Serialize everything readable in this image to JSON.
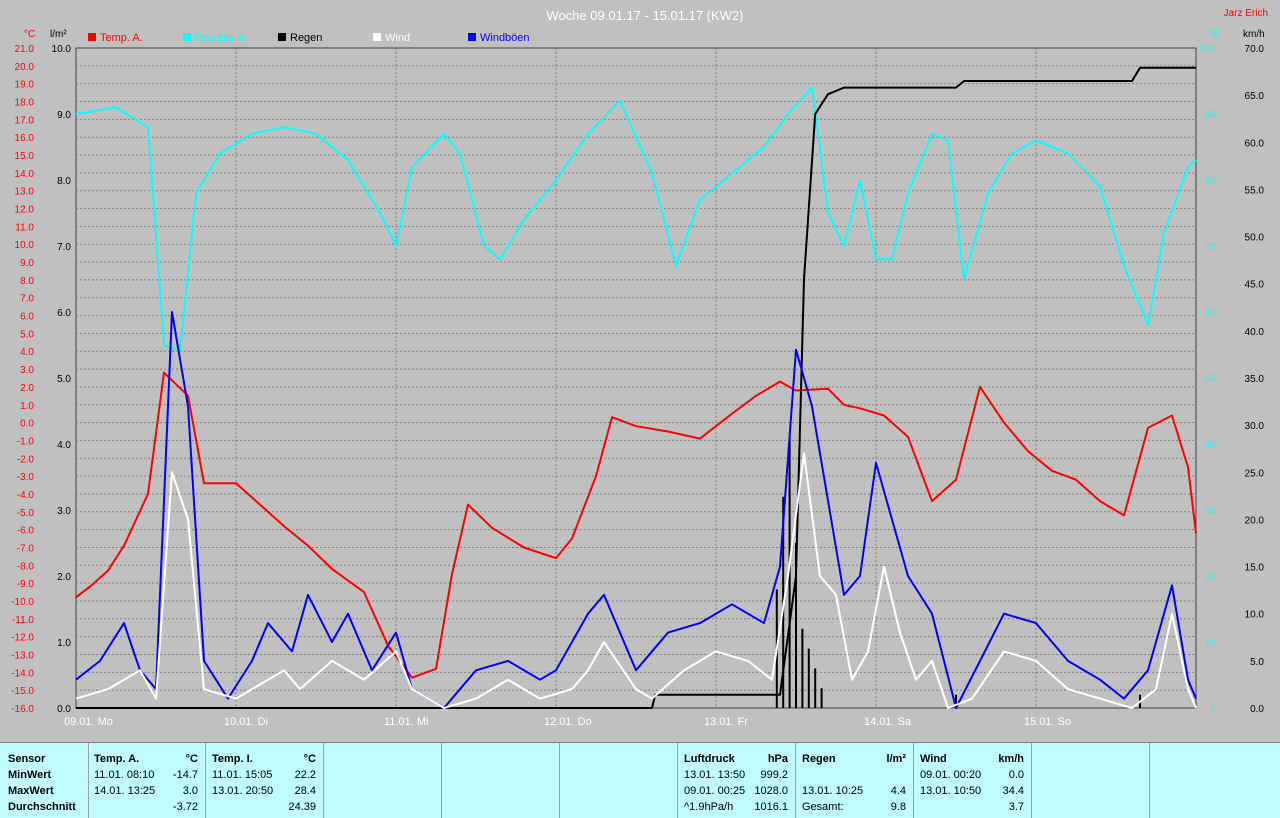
{
  "chart_data": {
    "type": "line",
    "title": "Woche 09.01.17 - 15.01.17 (KW2)",
    "credit": "Jarz Erich",
    "left_axis_unit": "°C",
    "rain_axis_unit": "l/m²",
    "humidity_axis_unit": "%",
    "wind_axis_unit": "km/h",
    "temp_ylim": [
      -16,
      21
    ],
    "rain_ylim": [
      0,
      10
    ],
    "humidity_ylim": [
      0,
      100
    ],
    "wind_ylim": [
      0,
      70
    ],
    "temp_ticks": [
      "21.0",
      "20.0",
      "19.0",
      "18.0",
      "17.0",
      "16.0",
      "15.0",
      "14.0",
      "13.0",
      "12.0",
      "11.0",
      "10.0",
      "9.0",
      "8.0",
      "7.0",
      "6.0",
      "5.0",
      "4.0",
      "3.0",
      "2.0",
      "1.0",
      "0.0",
      "-1.0",
      "-2.0",
      "-3.0",
      "-4.0",
      "-5.0",
      "-6.0",
      "-7.0",
      "-8.0",
      "-9.0",
      "-10.0",
      "-11.0",
      "-12.0",
      "-13.0",
      "-14.0",
      "-15.0",
      "-16.0"
    ],
    "rain_ticks": [
      "10.0",
      "9.0",
      "8.0",
      "7.0",
      "6.0",
      "5.0",
      "4.0",
      "3.0",
      "2.0",
      "1.0",
      "0.0"
    ],
    "humidity_ticks": [
      "100",
      "90",
      "80",
      "70",
      "60",
      "50",
      "40",
      "30",
      "20",
      "10",
      "0"
    ],
    "wind_ticks": [
      "70.0",
      "65.0",
      "60.0",
      "55.0",
      "50.0",
      "45.0",
      "40.0",
      "35.0",
      "30.0",
      "25.0",
      "20.0",
      "15.0",
      "10.0",
      "5.0",
      "0.0"
    ],
    "x_labels": [
      "09.01. Mo",
      "10.01. Di",
      "11.01. Mi",
      "12.01. Do",
      "13.01. Fr",
      "14.01. Sa",
      "15.01. So"
    ],
    "x_range_days": [
      0,
      7
    ],
    "grid": true,
    "legend_position": "top",
    "colors": {
      "temp": "#ff0000",
      "humidity": "#00ffff",
      "rain": "#000000",
      "wind": "#ffffff",
      "gusts": "#0000ff",
      "background": "#c0c0c0",
      "grid": "#808080"
    },
    "series": [
      {
        "name": "Temp. A.",
        "axis": "temp",
        "color": "#ff0000",
        "points": [
          [
            0,
            -9.8
          ],
          [
            0.1,
            -9.1
          ],
          [
            0.2,
            -8.3
          ],
          [
            0.3,
            -6.9
          ],
          [
            0.45,
            -4.0
          ],
          [
            0.55,
            2.8
          ],
          [
            0.7,
            1.5
          ],
          [
            0.8,
            -3.4
          ],
          [
            1.0,
            -3.4
          ],
          [
            1.15,
            -4.6
          ],
          [
            1.3,
            -5.8
          ],
          [
            1.45,
            -6.9
          ],
          [
            1.6,
            -8.2
          ],
          [
            1.8,
            -9.5
          ],
          [
            1.95,
            -12.5
          ],
          [
            2.1,
            -14.3
          ],
          [
            2.25,
            -13.8
          ],
          [
            2.35,
            -8.5
          ],
          [
            2.45,
            -4.6
          ],
          [
            2.6,
            -5.9
          ],
          [
            2.8,
            -7.0
          ],
          [
            3.0,
            -7.6
          ],
          [
            3.1,
            -6.5
          ],
          [
            3.25,
            -3.0
          ],
          [
            3.35,
            0.3
          ],
          [
            3.5,
            -0.2
          ],
          [
            3.7,
            -0.5
          ],
          [
            3.9,
            -0.9
          ],
          [
            4.1,
            0.5
          ],
          [
            4.25,
            1.5
          ],
          [
            4.4,
            2.3
          ],
          [
            4.5,
            1.8
          ],
          [
            4.7,
            1.9
          ],
          [
            4.8,
            1.0
          ],
          [
            4.9,
            0.8
          ],
          [
            5.05,
            0.4
          ],
          [
            5.2,
            -0.8
          ],
          [
            5.35,
            -4.4
          ],
          [
            5.5,
            -3.2
          ],
          [
            5.65,
            2.0
          ],
          [
            5.8,
            0.0
          ],
          [
            5.95,
            -1.6
          ],
          [
            6.1,
            -2.7
          ],
          [
            6.25,
            -3.2
          ],
          [
            6.4,
            -4.4
          ],
          [
            6.55,
            -5.2
          ],
          [
            6.7,
            -0.3
          ],
          [
            6.85,
            0.4
          ],
          [
            6.95,
            -2.5
          ],
          [
            7.0,
            -6.2
          ]
        ]
      },
      {
        "name": "Feuchte A.",
        "axis": "humidity",
        "color": "#00ffff",
        "points": [
          [
            0,
            90
          ],
          [
            0.25,
            91
          ],
          [
            0.45,
            88
          ],
          [
            0.55,
            55
          ],
          [
            0.65,
            54
          ],
          [
            0.75,
            78
          ],
          [
            0.9,
            84
          ],
          [
            1.1,
            87
          ],
          [
            1.3,
            88
          ],
          [
            1.5,
            87
          ],
          [
            1.7,
            83
          ],
          [
            1.9,
            75
          ],
          [
            2.0,
            70
          ],
          [
            2.1,
            82
          ],
          [
            2.3,
            87
          ],
          [
            2.4,
            84
          ],
          [
            2.55,
            70
          ],
          [
            2.65,
            68
          ],
          [
            2.8,
            74
          ],
          [
            3.0,
            80
          ],
          [
            3.2,
            87
          ],
          [
            3.4,
            92
          ],
          [
            3.6,
            81
          ],
          [
            3.75,
            67
          ],
          [
            3.9,
            77
          ],
          [
            4.1,
            81
          ],
          [
            4.3,
            85
          ],
          [
            4.45,
            90
          ],
          [
            4.6,
            94
          ],
          [
            4.7,
            75
          ],
          [
            4.8,
            70
          ],
          [
            4.9,
            80
          ],
          [
            5.0,
            68
          ],
          [
            5.1,
            68
          ],
          [
            5.2,
            78
          ],
          [
            5.35,
            87
          ],
          [
            5.45,
            86
          ],
          [
            5.55,
            65
          ],
          [
            5.7,
            78
          ],
          [
            5.85,
            84
          ],
          [
            6.0,
            86
          ],
          [
            6.2,
            84
          ],
          [
            6.4,
            79
          ],
          [
            6.55,
            67
          ],
          [
            6.7,
            58
          ],
          [
            6.8,
            72
          ],
          [
            6.95,
            82
          ],
          [
            7.0,
            83
          ]
        ]
      },
      {
        "name": "Regen",
        "axis": "rain",
        "color": "#000000",
        "points": [
          [
            0,
            0
          ],
          [
            3.6,
            0
          ],
          [
            3.62,
            0.2
          ],
          [
            4.4,
            0.2
          ],
          [
            4.5,
            2.0
          ],
          [
            4.55,
            6.5
          ],
          [
            4.62,
            9.0
          ],
          [
            4.7,
            9.3
          ],
          [
            4.8,
            9.4
          ],
          [
            5.5,
            9.4
          ],
          [
            5.55,
            9.5
          ],
          [
            6.6,
            9.5
          ],
          [
            6.65,
            9.7
          ],
          [
            7.0,
            9.7
          ]
        ]
      },
      {
        "name": "Wind",
        "axis": "wind",
        "color": "#ffffff",
        "points": [
          [
            0,
            1
          ],
          [
            0.2,
            2
          ],
          [
            0.4,
            4
          ],
          [
            0.5,
            1
          ],
          [
            0.6,
            25
          ],
          [
            0.7,
            20
          ],
          [
            0.8,
            2
          ],
          [
            1.0,
            1
          ],
          [
            1.1,
            2
          ],
          [
            1.3,
            4
          ],
          [
            1.4,
            2
          ],
          [
            1.6,
            5
          ],
          [
            1.8,
            3
          ],
          [
            2.0,
            6
          ],
          [
            2.1,
            2
          ],
          [
            2.3,
            0
          ],
          [
            2.5,
            1
          ],
          [
            2.7,
            3
          ],
          [
            2.9,
            1
          ],
          [
            3.1,
            2
          ],
          [
            3.2,
            4
          ],
          [
            3.3,
            7
          ],
          [
            3.5,
            2
          ],
          [
            3.6,
            1
          ],
          [
            3.8,
            4
          ],
          [
            4.0,
            6
          ],
          [
            4.2,
            5
          ],
          [
            4.35,
            3
          ],
          [
            4.45,
            14
          ],
          [
            4.55,
            27
          ],
          [
            4.65,
            14
          ],
          [
            4.75,
            12
          ],
          [
            4.85,
            3
          ],
          [
            4.95,
            6
          ],
          [
            5.05,
            15
          ],
          [
            5.15,
            8
          ],
          [
            5.25,
            3
          ],
          [
            5.35,
            5
          ],
          [
            5.45,
            0
          ],
          [
            5.6,
            1
          ],
          [
            5.8,
            6
          ],
          [
            6.0,
            5
          ],
          [
            6.2,
            2
          ],
          [
            6.4,
            1
          ],
          [
            6.6,
            0
          ],
          [
            6.75,
            2
          ],
          [
            6.85,
            10
          ],
          [
            6.95,
            2
          ],
          [
            7.0,
            0
          ]
        ]
      },
      {
        "name": "Windböen",
        "axis": "wind",
        "color": "#0000ff",
        "points": [
          [
            0,
            3
          ],
          [
            0.15,
            5
          ],
          [
            0.3,
            9
          ],
          [
            0.4,
            4
          ],
          [
            0.5,
            2
          ],
          [
            0.6,
            42
          ],
          [
            0.7,
            32
          ],
          [
            0.8,
            5
          ],
          [
            0.95,
            1
          ],
          [
            1.1,
            5
          ],
          [
            1.2,
            9
          ],
          [
            1.35,
            6
          ],
          [
            1.45,
            12
          ],
          [
            1.6,
            7
          ],
          [
            1.7,
            10
          ],
          [
            1.85,
            4
          ],
          [
            2.0,
            8
          ],
          [
            2.1,
            2
          ],
          [
            2.3,
            0
          ],
          [
            2.5,
            4
          ],
          [
            2.7,
            5
          ],
          [
            2.9,
            3
          ],
          [
            3.0,
            4
          ],
          [
            3.2,
            10
          ],
          [
            3.3,
            12
          ],
          [
            3.5,
            4
          ],
          [
            3.7,
            8
          ],
          [
            3.9,
            9
          ],
          [
            4.1,
            11
          ],
          [
            4.3,
            9
          ],
          [
            4.4,
            15
          ],
          [
            4.5,
            38
          ],
          [
            4.6,
            32
          ],
          [
            4.7,
            22
          ],
          [
            4.8,
            12
          ],
          [
            4.9,
            14
          ],
          [
            5.0,
            26
          ],
          [
            5.1,
            20
          ],
          [
            5.2,
            14
          ],
          [
            5.35,
            10
          ],
          [
            5.5,
            0
          ],
          [
            5.65,
            5
          ],
          [
            5.8,
            10
          ],
          [
            6.0,
            9
          ],
          [
            6.2,
            5
          ],
          [
            6.4,
            3
          ],
          [
            6.55,
            1
          ],
          [
            6.7,
            4
          ],
          [
            6.85,
            13
          ],
          [
            6.95,
            3
          ],
          [
            7.0,
            1
          ]
        ]
      }
    ],
    "rain_bars": [
      [
        4.38,
        1.8
      ],
      [
        4.42,
        3.2
      ],
      [
        4.46,
        4.1
      ],
      [
        4.5,
        2.5
      ],
      [
        4.54,
        1.2
      ],
      [
        4.58,
        0.9
      ],
      [
        4.62,
        0.6
      ],
      [
        4.66,
        0.3
      ],
      [
        5.5,
        0.2
      ],
      [
        6.65,
        0.2
      ]
    ]
  },
  "summary": {
    "sensor_header": "Sensor",
    "row_labels": [
      "MinWert",
      "MaxWert",
      "Durchschnitt"
    ],
    "temp_a": {
      "title": "Temp. A.",
      "unit": "°C",
      "min_time": "11.01.  08:10",
      "min_val": "-14.7",
      "max_time": "14.01.  13:25",
      "max_val": "3.0",
      "avg": "-3.72"
    },
    "temp_i": {
      "title": "Temp. I.",
      "unit": "°C",
      "min_time": "11.01.  15:05",
      "min_val": "22.2",
      "max_time": "13.01.  20:50",
      "max_val": "28.4",
      "avg": "24.39"
    },
    "pressure": {
      "title": "Luftdruck",
      "unit": "hPa",
      "min_time": "13.01.  13:50",
      "min_val": "999.2",
      "max_time": "09.01.  00:25",
      "max_val": "1028.0",
      "trend": "^1.9hPa/h",
      "trend_val": "1016.1"
    },
    "rain": {
      "title": "Regen",
      "unit": "l/m²",
      "max_time": "13.01.  10:25",
      "max_val": "4.4",
      "total_label": "Gesamt:",
      "total_val": "9.8"
    },
    "wind": {
      "title": "Wind",
      "unit": "km/h",
      "min_time": "09.01.  00:20",
      "min_val": "0.0",
      "max_time": "13.01.  10:50",
      "max_val": "34.4",
      "avg": "3.7"
    }
  }
}
